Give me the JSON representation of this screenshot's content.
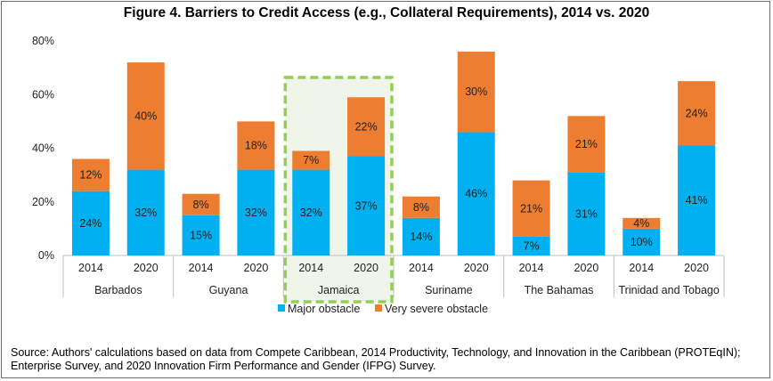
{
  "title": "Figure 4. Barriers to Credit Access (e.g., Collateral Requirements), 2014 vs. 2020",
  "source": "Source: Authors' calculations based on data from Compete Caribbean, 2014 Productivity, Technology, and Innovation in the Caribbean (PROTEqIN); Enterprise Survey, and 2020 Innovation Firm Performance and Gender (IFPG) Survey.",
  "colors": {
    "major": "#00B0F0",
    "severe": "#ED7D31",
    "highlight_border": "#92D050",
    "highlight_fill": "#EFF5E9"
  },
  "chart_data": {
    "type": "bar",
    "stacked": true,
    "title": "Figure 4. Barriers to Credit Access (e.g., Collateral Requirements), 2014 vs. 2020",
    "ylim": [
      0,
      80
    ],
    "yticks": [
      0,
      20,
      40,
      60,
      80
    ],
    "ytick_labels": [
      "0%",
      "20%",
      "40%",
      "60%",
      "80%"
    ],
    "groups": [
      "Barbados",
      "Guyana",
      "Jamaica",
      "Suriname",
      "The Bahamas",
      "Trinidad and Tobago"
    ],
    "highlighted_group": "Jamaica",
    "categories": [
      "2014",
      "2020",
      "2014",
      "2020",
      "2014",
      "2020",
      "2014",
      "2020",
      "2014",
      "2020",
      "2014",
      "2020"
    ],
    "series": [
      {
        "name": "Major obstacle",
        "values": [
          24,
          32,
          15,
          32,
          32,
          37,
          14,
          46,
          7,
          31,
          10,
          41
        ],
        "labels": [
          "24%",
          "32%",
          "15%",
          "32%",
          "32%",
          "37%",
          "14%",
          "46%",
          "7%",
          "31%",
          "10%",
          "41%"
        ]
      },
      {
        "name": "Very severe obstacle",
        "values": [
          12,
          40,
          8,
          18,
          7,
          22,
          8,
          30,
          21,
          21,
          4,
          24
        ],
        "labels": [
          "12%",
          "40%",
          "8%",
          "18%",
          "7%",
          "22%",
          "8%",
          "30%",
          "21%",
          "21%",
          "4%",
          "24%"
        ]
      }
    ],
    "legend": [
      "Major obstacle",
      "Very severe obstacle"
    ],
    "legend_position": "bottom"
  }
}
